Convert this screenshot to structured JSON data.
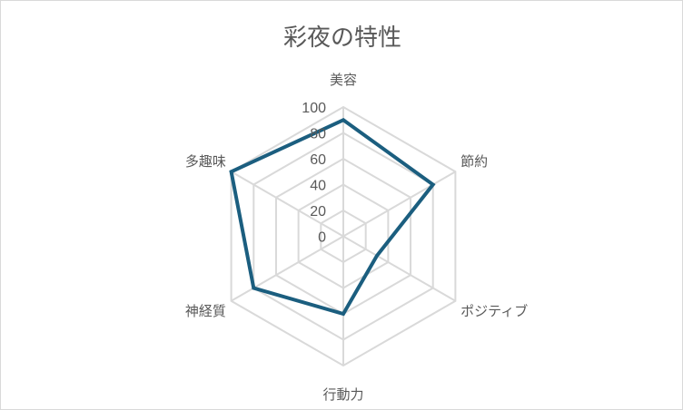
{
  "chart_data": {
    "type": "radar",
    "title": "彩夜の特性",
    "categories": [
      "美容",
      "節約",
      "ポジティブ",
      "行動力",
      "神経質",
      "多趣味"
    ],
    "series": [
      {
        "values": [
          90,
          80,
          30,
          60,
          80,
          100
        ],
        "color": "#1b5e7f"
      }
    ],
    "rlim": [
      0,
      100
    ],
    "ticks": [
      "0",
      "20",
      "40",
      "60",
      "80",
      "100"
    ],
    "grid": true,
    "grid_color": "#d9d9d9",
    "legend": "none"
  }
}
